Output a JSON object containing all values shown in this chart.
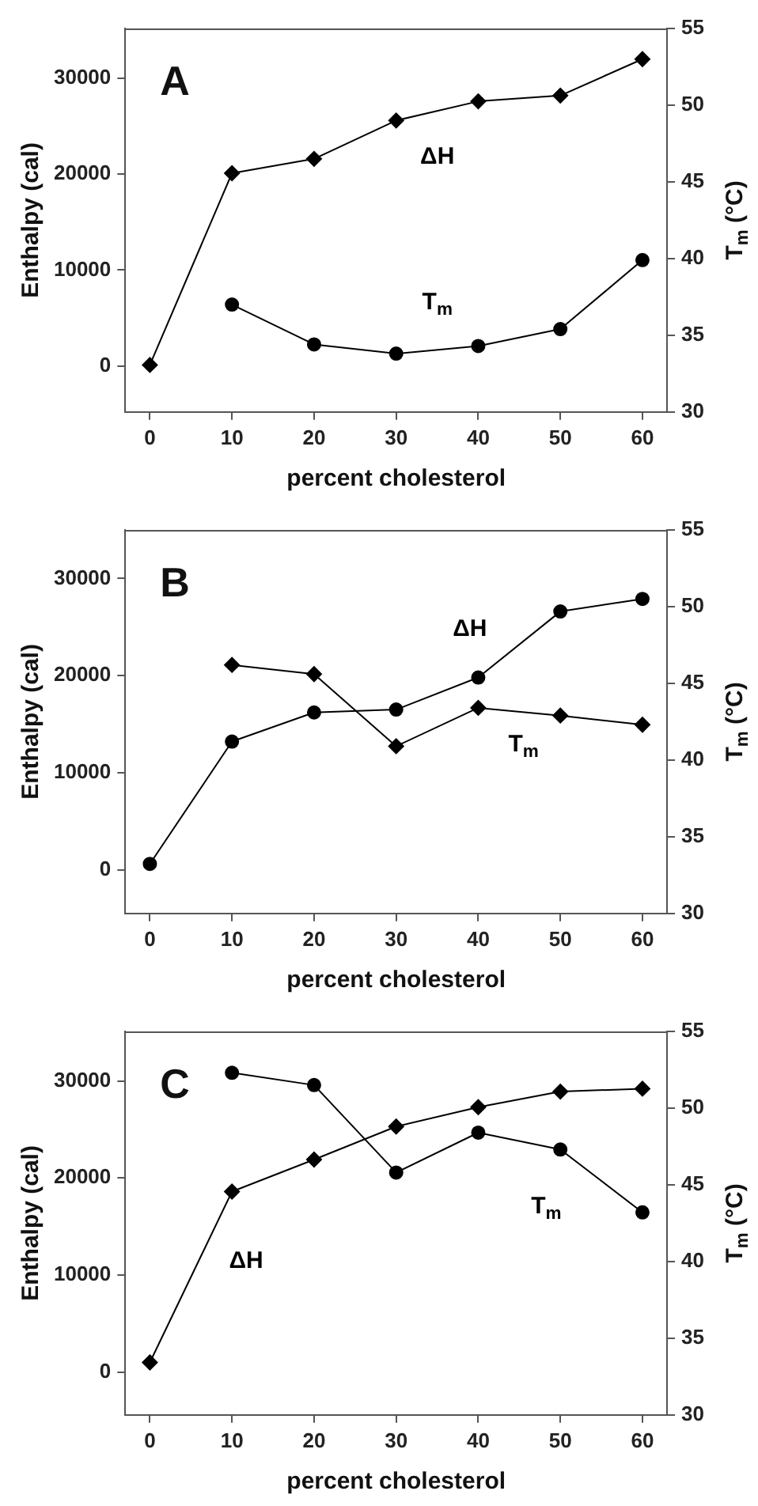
{
  "chart_data": [
    {
      "type": "line",
      "title": "A",
      "xlabel": "percent cholesterol",
      "ylabel": "Enthalpy (cal)",
      "y2label": "T$_{m}$ (°C)",
      "xlim": [
        -3,
        63
      ],
      "xticks": [
        0,
        10,
        20,
        30,
        40,
        50,
        60
      ],
      "ylim": [
        -4800,
        35200
      ],
      "yticks": [
        0,
        10000,
        20000,
        30000
      ],
      "y2lim": [
        30,
        55
      ],
      "y2ticks": [
        30,
        35,
        40,
        45,
        50,
        55
      ],
      "line_style": "solid",
      "grid": false,
      "legend": false,
      "series": [
        {
          "name": "ΔH",
          "color": "#000000",
          "marker": "diamond",
          "x": [
            0,
            10,
            20,
            30,
            40,
            50,
            60
          ],
          "values": [
            100,
            20100,
            21600,
            25600,
            27600,
            28200,
            32000
          ]
        },
        {
          "name": "T$_{m}$",
          "color": "#000000",
          "marker": "circle",
          "axis": "y2",
          "x": [
            10,
            20,
            30,
            40,
            50,
            60
          ],
          "values": [
            37.0,
            34.4,
            33.8,
            34.3,
            35.4,
            39.9
          ]
        }
      ]
    },
    {
      "type": "line",
      "title": "B",
      "xlabel": "percent cholesterol",
      "ylabel": "Enthalpy (cal)",
      "y2label": "T$_{m}$ (°C)",
      "xlim": [
        -3,
        63
      ],
      "xticks": [
        0,
        10,
        20,
        30,
        40,
        50,
        60
      ],
      "ylim": [
        -4500,
        35000
      ],
      "yticks": [
        0,
        10000,
        20000,
        30000
      ],
      "y2lim": [
        30,
        55
      ],
      "y2ticks": [
        30,
        35,
        40,
        45,
        50,
        55
      ],
      "line_style": "solid",
      "grid": false,
      "legend": false,
      "series": [
        {
          "name": "ΔH",
          "color": "#000000",
          "marker": "circle",
          "x": [
            0,
            10,
            20,
            30,
            40,
            50,
            60
          ],
          "values": [
            600,
            13200,
            16200,
            16500,
            19800,
            26600,
            27900
          ]
        },
        {
          "name": "T$_{m}$",
          "color": "#000000",
          "marker": "diamond",
          "axis": "y2",
          "x": [
            10,
            20,
            30,
            40,
            50,
            60
          ],
          "values": [
            46.2,
            45.6,
            40.9,
            43.4,
            42.9,
            42.3
          ]
        }
      ]
    },
    {
      "type": "line",
      "title": "C",
      "xlabel": "percent cholesterol",
      "ylabel": "Enthalpy (cal)",
      "y2label": "T$_{m}$ (°C)",
      "xlim": [
        -3,
        63
      ],
      "xticks": [
        0,
        10,
        20,
        30,
        40,
        50,
        60
      ],
      "ylim": [
        -4400,
        35100
      ],
      "yticks": [
        0,
        10000,
        20000,
        30000
      ],
      "y2lim": [
        30,
        55
      ],
      "y2ticks": [
        30,
        35,
        40,
        45,
        50,
        55
      ],
      "line_style": "solid",
      "grid": false,
      "legend": false,
      "series": [
        {
          "name": "ΔH",
          "color": "#000000",
          "marker": "diamond",
          "x": [
            0,
            10,
            20,
            30,
            40,
            50,
            60
          ],
          "values": [
            1000,
            18600,
            21900,
            25300,
            27300,
            28900,
            29200
          ]
        },
        {
          "name": "T$_{m}$",
          "color": "#000000",
          "marker": "circle",
          "axis": "y2",
          "x": [
            10,
            20,
            30,
            40,
            50,
            60
          ],
          "values": [
            52.3,
            51.5,
            45.8,
            48.4,
            47.3,
            43.2
          ]
        }
      ]
    }
  ]
}
